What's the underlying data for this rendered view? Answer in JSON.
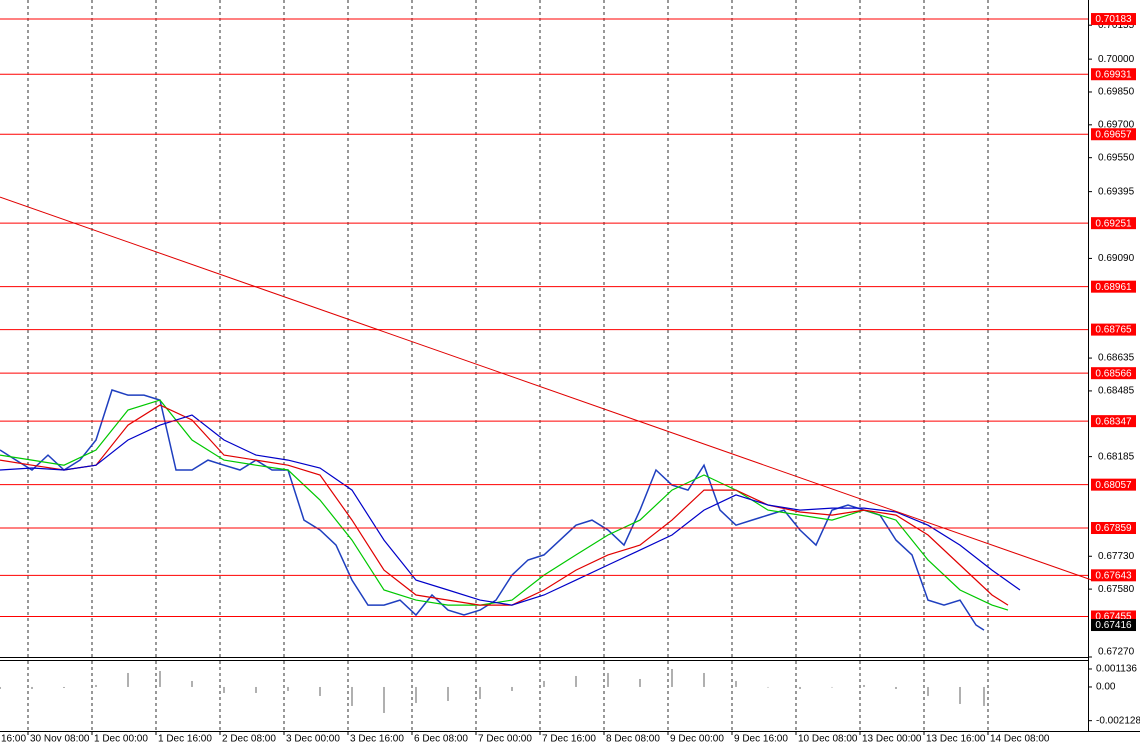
{
  "chart_data": [
    {
      "type": "line",
      "xlim": [
        0,
        272
      ],
      "ylim": [
        0.6727,
        0.7027
      ],
      "grid": true,
      "xticks": [
        {
          "value": -9,
          "label": "16:00"
        },
        {
          "value": 7,
          "label": "30 Nov 08:00"
        },
        {
          "value": 23,
          "label": "1 Dec 00:00"
        },
        {
          "value": 39,
          "label": "1 Dec 16:00"
        },
        {
          "value": 55,
          "label": "2 Dec 08:00"
        },
        {
          "value": 71,
          "label": "3 Dec 00:00"
        },
        {
          "value": 87,
          "label": "3 Dec 16:00"
        },
        {
          "value": 103,
          "label": "6 Dec 08:00"
        },
        {
          "value": 119,
          "label": "7 Dec 00:00"
        },
        {
          "value": 135,
          "label": "7 Dec 16:00"
        },
        {
          "value": 151,
          "label": "8 Dec 08:00"
        },
        {
          "value": 167,
          "label": "9 Dec 00:00"
        },
        {
          "value": 183,
          "label": "9 Dec 16:00"
        },
        {
          "value": 199,
          "label": "10 Dec 08:00"
        },
        {
          "value": 215,
          "label": "13 Dec 00:00"
        },
        {
          "value": 231,
          "label": "13 Dec 16:00"
        },
        {
          "value": 247,
          "label": "14 Dec 08:00"
        }
      ],
      "yticks": [
        0.70155,
        {
          "value": 0.7,
          "label": "0.70000"
        },
        {
          "value": 0.6985,
          "label": "0.69850"
        },
        {
          "value": 0.697,
          "label": "0.69700"
        },
        {
          "value": 0.6955,
          "label": "0.69550"
        },
        0.69395,
        {
          "value": 0.6909,
          "label": "0.69090"
        },
        0.68635,
        0.68485,
        0.68185,
        {
          "value": 0.6773,
          "label": "0.67730"
        },
        {
          "value": 0.6758,
          "label": "0.67580"
        },
        {
          "value": 0.6727,
          "label": "0.67270"
        }
      ],
      "series": [
        {
          "color": "#1f3fbf",
          "x": [
            0,
            4,
            8,
            12,
            16,
            20,
            24,
            28,
            32,
            36,
            40,
            44,
            48,
            52,
            56,
            60,
            64,
            68,
            72,
            76,
            80,
            84,
            88,
            92,
            96,
            100,
            104,
            108,
            112,
            116,
            120,
            124,
            128,
            132,
            136,
            140,
            144,
            148,
            152,
            156,
            160,
            164,
            168,
            172,
            176,
            180,
            184,
            188,
            192,
            196,
            200,
            204,
            208,
            212,
            216,
            220,
            224,
            228,
            232,
            236,
            240,
            244,
            246
          ],
          "values": [
            0.68215,
            0.68169,
            0.68124,
            0.68192,
            0.68124,
            0.68169,
            0.68261,
            0.68489,
            0.68466,
            0.68466,
            0.68443,
            0.68124,
            0.68124,
            0.68169,
            0.68146,
            0.68124,
            0.68169,
            0.68124,
            0.68124,
            0.67895,
            0.6785,
            0.67781,
            0.67621,
            0.67507,
            0.67507,
            0.6753,
            0.67462,
            0.67553,
            0.67484,
            0.67462,
            0.67484,
            0.6753,
            0.67644,
            0.67713,
            0.67736,
            0.67804,
            0.67872,
            0.67895,
            0.6785,
            0.67781,
            0.67941,
            0.68124,
            0.68055,
            0.68032,
            0.68146,
            0.67941,
            0.67872,
            0.67895,
            0.67918,
            0.67941,
            0.6785,
            0.67781,
            0.67941,
            0.67964,
            0.67941,
            0.67918,
            0.67804,
            0.67736,
            0.6753,
            0.67507,
            0.6753,
            0.67416,
            0.67393
          ]
        },
        {
          "color": "#00c800",
          "x": [
            0,
            8,
            16,
            24,
            32,
            40,
            48,
            56,
            64,
            72,
            80,
            88,
            96,
            104,
            112,
            120,
            128,
            136,
            144,
            152,
            160,
            168,
            176,
            184,
            192,
            200,
            208,
            216,
            224,
            232,
            240,
            248,
            252
          ],
          "values": [
            0.68192,
            0.68169,
            0.68146,
            0.68215,
            0.68398,
            0.68443,
            0.68261,
            0.68169,
            0.68146,
            0.68124,
            0.67987,
            0.67804,
            0.67576,
            0.6753,
            0.67507,
            0.67507,
            0.6753,
            0.67644,
            0.67736,
            0.67827,
            0.67895,
            0.68032,
            0.68101,
            0.68032,
            0.67941,
            0.67918,
            0.67895,
            0.67941,
            0.67895,
            0.67713,
            0.67576,
            0.67507,
            0.67484
          ]
        },
        {
          "color": "#e00000",
          "x": [
            0,
            8,
            16,
            24,
            32,
            40,
            48,
            56,
            64,
            72,
            80,
            88,
            96,
            104,
            112,
            120,
            128,
            136,
            144,
            152,
            160,
            168,
            176,
            184,
            192,
            200,
            208,
            216,
            224,
            232,
            240,
            248,
            252
          ],
          "values": [
            0.68169,
            0.68146,
            0.68124,
            0.68146,
            0.68329,
            0.6842,
            0.68352,
            0.68192,
            0.68169,
            0.68146,
            0.68101,
            0.67895,
            0.67667,
            0.67553,
            0.6753,
            0.67507,
            0.67507,
            0.67576,
            0.67667,
            0.67736,
            0.67781,
            0.67895,
            0.68032,
            0.68032,
            0.67964,
            0.67932,
            0.67918,
            0.67941,
            0.67918,
            0.67827,
            0.6769,
            0.67553,
            0.67507
          ]
        },
        {
          "color": "#0000c8",
          "x": [
            0,
            8,
            16,
            24,
            32,
            40,
            48,
            56,
            64,
            72,
            80,
            88,
            96,
            104,
            112,
            120,
            128,
            136,
            144,
            152,
            160,
            168,
            176,
            184,
            192,
            200,
            208,
            216,
            224,
            232,
            240,
            248,
            255
          ],
          "values": [
            0.68124,
            0.68133,
            0.68124,
            0.68146,
            0.68261,
            0.68329,
            0.68375,
            0.68261,
            0.68192,
            0.68169,
            0.68133,
            0.68032,
            0.67804,
            0.67621,
            0.67576,
            0.6753,
            0.67507,
            0.67553,
            0.67621,
            0.6769,
            0.67758,
            0.67827,
            0.67941,
            0.6801,
            0.67964,
            0.67941,
            0.6795,
            0.6795,
            0.67932,
            0.67872,
            0.67781,
            0.67667,
            0.67576
          ]
        }
      ],
      "levels": {
        "color": "#ff0000",
        "values": [
          0.70183,
          0.69931,
          0.69657,
          0.69251,
          0.68961,
          0.68765,
          0.68566,
          0.68347,
          0.68057,
          0.67859,
          0.67643,
          0.67455
        ]
      },
      "current_price": {
        "color": "#000000",
        "value": 0.67416
      },
      "trendline": {
        "color": "#e00000",
        "x": [
          0,
          273
        ],
        "values": [
          0.6937,
          0.67621
        ]
      }
    },
    {
      "type": "bar",
      "color": "#b0b0b0",
      "xlim": [
        0,
        272
      ],
      "ylim": [
        -0.00278,
        0.00164
      ],
      "yticks": [
        0.001136,
        {
          "value": 0,
          "label": "0.00"
        },
        -0.002128
      ],
      "x": [
        0,
        8,
        16,
        24,
        32,
        40,
        48,
        56,
        64,
        72,
        80,
        88,
        96,
        104,
        112,
        120,
        128,
        136,
        144,
        152,
        160,
        168,
        176,
        184,
        192,
        200,
        208,
        216,
        224,
        232,
        240,
        246
      ],
      "values": [
        -0.000126,
        -0.000126,
        -6.3e-05,
        0.000126,
        0.000884,
        0.001009,
        0.000379,
        -0.000379,
        -0.000379,
        -0.000252,
        -0.000568,
        -0.001199,
        -0.001641,
        -0.00101,
        -0.000884,
        -0.000757,
        -0.000252,
        0.000379,
        0.000694,
        0.000884,
        0.000505,
        0.001136,
        0.000884,
        0.000379,
        0,
        -0.000126,
        0,
        0.000126,
        -0.000126,
        -0.000568,
        -0.001073,
        -0.001199
      ]
    }
  ]
}
